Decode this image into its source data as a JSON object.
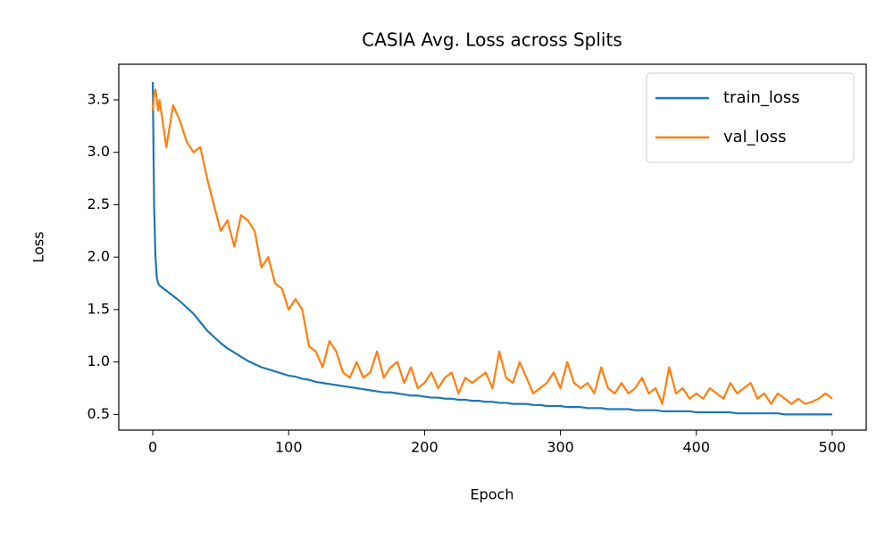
{
  "chart_data": {
    "type": "line",
    "title": "CASIA Avg. Loss across Splits",
    "xlabel": "Epoch",
    "ylabel": "Loss",
    "x": [
      0,
      1,
      2,
      3,
      4,
      5,
      10,
      15,
      20,
      25,
      30,
      35,
      40,
      45,
      50,
      55,
      60,
      65,
      70,
      75,
      80,
      85,
      90,
      95,
      100,
      105,
      110,
      115,
      120,
      125,
      130,
      135,
      140,
      145,
      150,
      155,
      160,
      165,
      170,
      175,
      180,
      185,
      190,
      195,
      200,
      205,
      210,
      215,
      220,
      225,
      230,
      235,
      240,
      245,
      250,
      255,
      260,
      265,
      270,
      275,
      280,
      285,
      290,
      295,
      300,
      305,
      310,
      315,
      320,
      325,
      330,
      335,
      340,
      345,
      350,
      355,
      360,
      365,
      370,
      375,
      380,
      385,
      390,
      395,
      400,
      405,
      410,
      415,
      420,
      425,
      430,
      435,
      440,
      445,
      450,
      455,
      460,
      465,
      470,
      475,
      480,
      485,
      490,
      495,
      500
    ],
    "series": [
      {
        "name": "train_loss",
        "color": "#1f77b4",
        "values": [
          3.67,
          2.5,
          2.0,
          1.8,
          1.75,
          1.73,
          1.68,
          1.63,
          1.58,
          1.52,
          1.46,
          1.38,
          1.3,
          1.24,
          1.18,
          1.13,
          1.09,
          1.05,
          1.01,
          0.98,
          0.95,
          0.93,
          0.91,
          0.89,
          0.87,
          0.86,
          0.84,
          0.83,
          0.81,
          0.8,
          0.79,
          0.78,
          0.77,
          0.76,
          0.75,
          0.74,
          0.73,
          0.72,
          0.71,
          0.71,
          0.7,
          0.69,
          0.68,
          0.68,
          0.67,
          0.66,
          0.66,
          0.65,
          0.65,
          0.64,
          0.64,
          0.63,
          0.63,
          0.62,
          0.62,
          0.61,
          0.61,
          0.6,
          0.6,
          0.6,
          0.59,
          0.59,
          0.58,
          0.58,
          0.58,
          0.57,
          0.57,
          0.57,
          0.56,
          0.56,
          0.56,
          0.55,
          0.55,
          0.55,
          0.55,
          0.54,
          0.54,
          0.54,
          0.54,
          0.53,
          0.53,
          0.53,
          0.53,
          0.53,
          0.52,
          0.52,
          0.52,
          0.52,
          0.52,
          0.52,
          0.51,
          0.51,
          0.51,
          0.51,
          0.51,
          0.51,
          0.51,
          0.5,
          0.5,
          0.5,
          0.5,
          0.5,
          0.5,
          0.5,
          0.5
        ]
      },
      {
        "name": "val_loss",
        "color": "#ff7f0e",
        "values": [
          3.4,
          3.55,
          3.6,
          3.5,
          3.4,
          3.5,
          3.05,
          3.45,
          3.3,
          3.1,
          3.0,
          3.05,
          2.75,
          2.5,
          2.25,
          2.35,
          2.1,
          2.4,
          2.35,
          2.25,
          1.9,
          2.0,
          1.75,
          1.7,
          1.5,
          1.6,
          1.5,
          1.15,
          1.1,
          0.95,
          1.2,
          1.1,
          0.9,
          0.85,
          1.0,
          0.85,
          0.9,
          1.1,
          0.85,
          0.95,
          1.0,
          0.8,
          0.95,
          0.75,
          0.8,
          0.9,
          0.75,
          0.85,
          0.9,
          0.7,
          0.85,
          0.8,
          0.85,
          0.9,
          0.75,
          1.1,
          0.85,
          0.8,
          1.0,
          0.85,
          0.7,
          0.75,
          0.8,
          0.9,
          0.75,
          1.0,
          0.8,
          0.75,
          0.8,
          0.7,
          0.95,
          0.75,
          0.7,
          0.8,
          0.7,
          0.75,
          0.85,
          0.7,
          0.75,
          0.6,
          0.95,
          0.7,
          0.75,
          0.65,
          0.7,
          0.65,
          0.75,
          0.7,
          0.65,
          0.8,
          0.7,
          0.75,
          0.8,
          0.65,
          0.7,
          0.6,
          0.7,
          0.65,
          0.6,
          0.65,
          0.6,
          0.62,
          0.65,
          0.7,
          0.65
        ]
      }
    ],
    "xlim": [
      -25,
      525
    ],
    "xticks": [
      0,
      100,
      200,
      300,
      400,
      500
    ],
    "ylim": [
      0.35,
      3.84
    ],
    "yticks": [
      0.5,
      {
        "value": 1,
        "label": "1.0"
      },
      1.5,
      {
        "value": 2,
        "label": "2.0"
      },
      2.5,
      {
        "value": 3,
        "label": "3.0"
      },
      3.5
    ],
    "grid": false,
    "legend": "upper right"
  }
}
